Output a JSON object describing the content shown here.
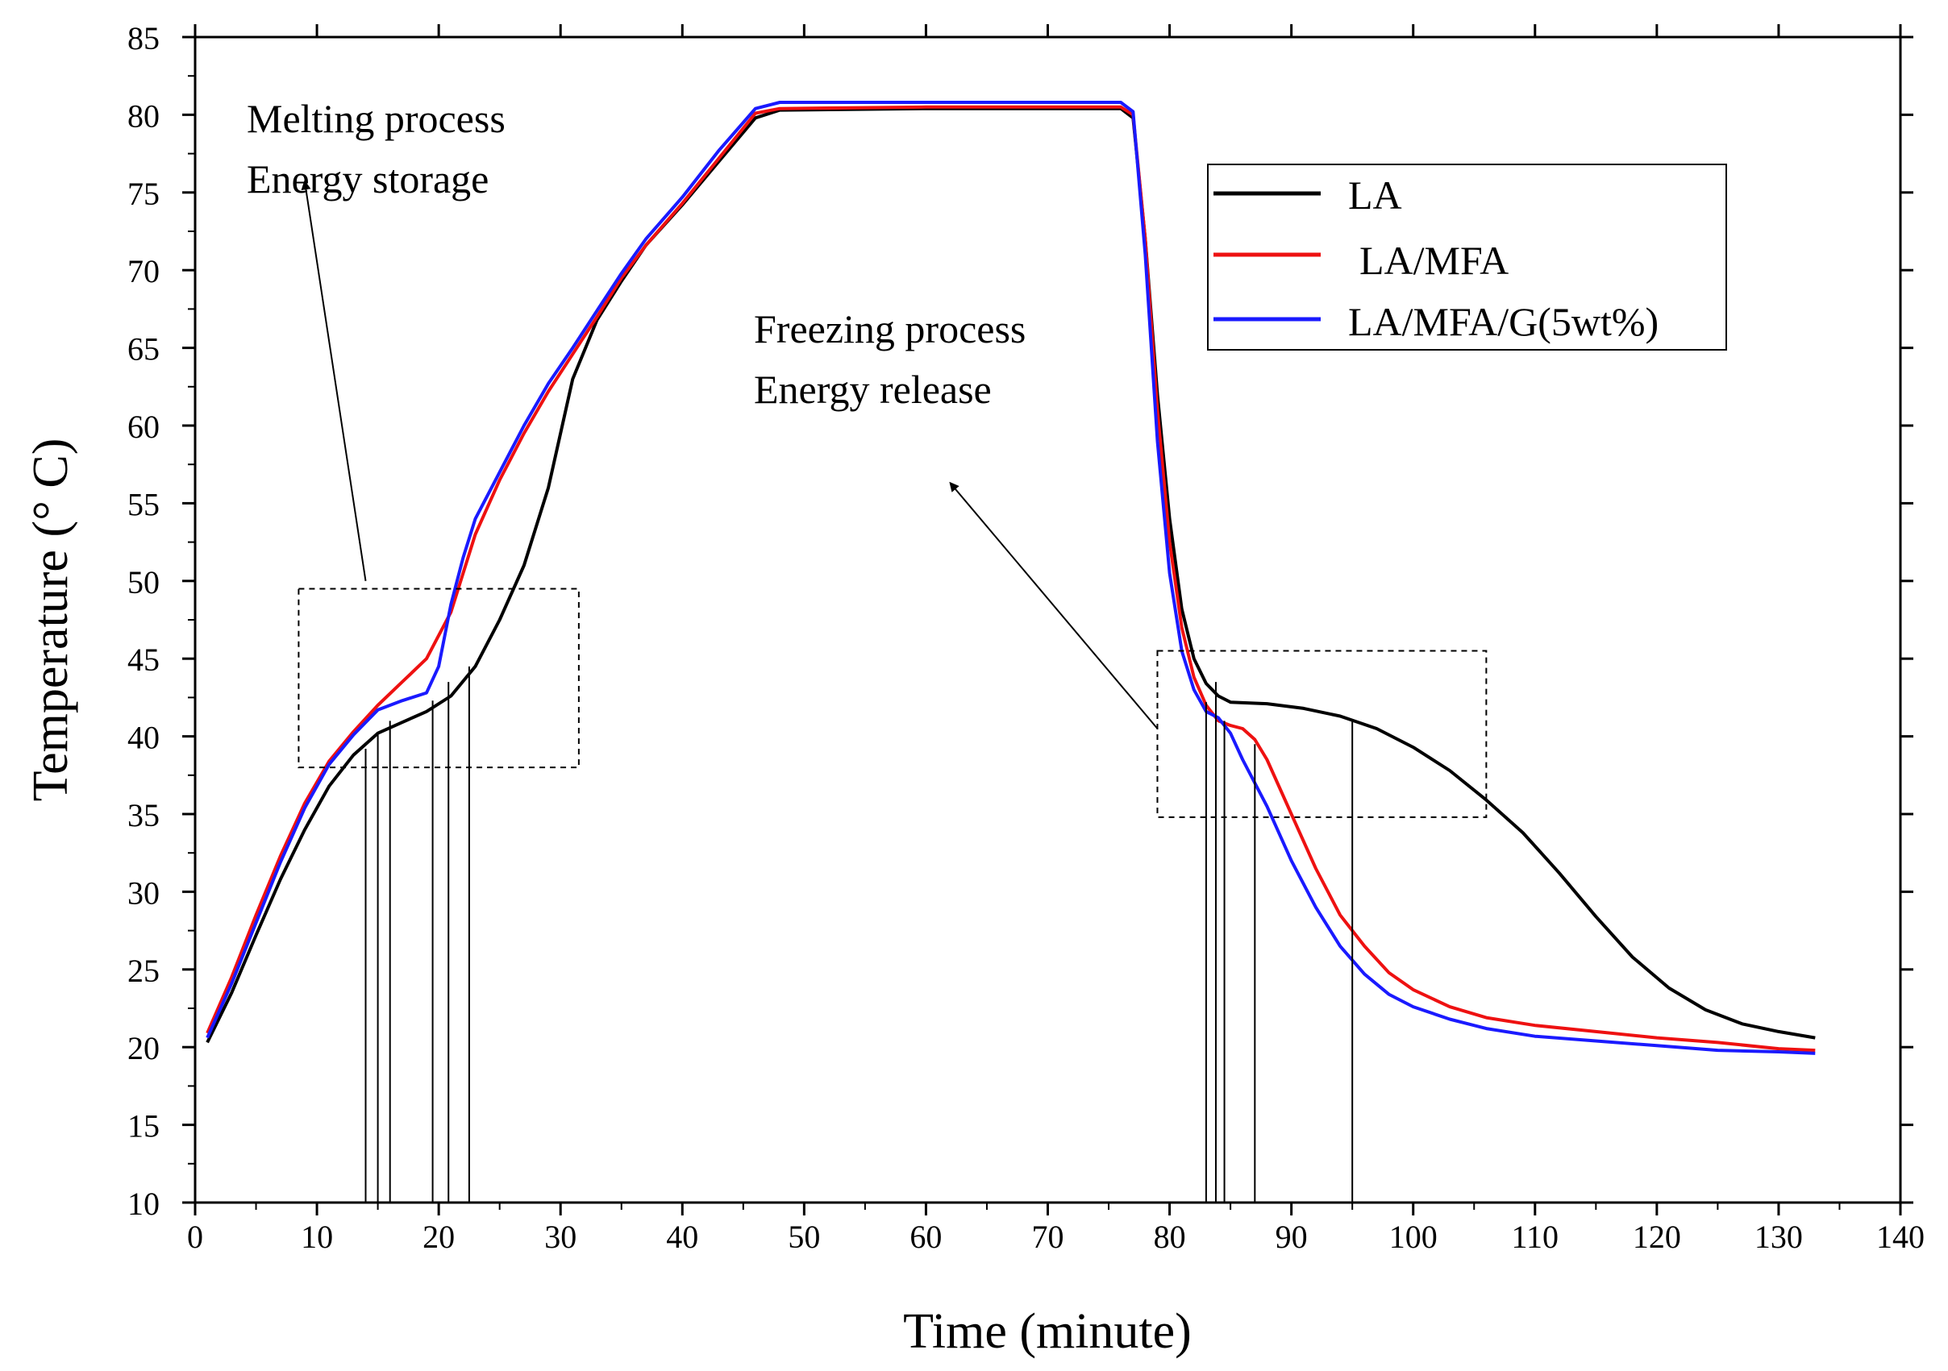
{
  "chart_data": {
    "type": "line",
    "xlabel": "Time (minute)",
    "ylabel": "Temperature (° C)",
    "xlim": [
      0,
      140
    ],
    "ylim": [
      10,
      85
    ],
    "xticks": [
      0,
      10,
      20,
      30,
      40,
      50,
      60,
      70,
      80,
      90,
      100,
      110,
      120,
      130,
      140
    ],
    "yticks": [
      10,
      15,
      20,
      25,
      30,
      35,
      40,
      45,
      50,
      55,
      60,
      65,
      70,
      75,
      80,
      85
    ],
    "grid": false,
    "legend_position": "top-right",
    "series": [
      {
        "name": "LA",
        "color": "#000000",
        "points": [
          [
            1,
            20.3
          ],
          [
            3,
            23.5
          ],
          [
            5,
            27.2
          ],
          [
            7,
            30.8
          ],
          [
            9,
            34
          ],
          [
            11,
            36.8
          ],
          [
            13,
            38.8
          ],
          [
            15,
            40.2
          ],
          [
            17,
            40.9
          ],
          [
            19,
            41.6
          ],
          [
            21,
            42.6
          ],
          [
            23,
            44.5
          ],
          [
            25,
            47.5
          ],
          [
            27,
            51
          ],
          [
            29,
            56
          ],
          [
            31,
            63
          ],
          [
            33,
            66.8
          ],
          [
            35,
            69.3
          ],
          [
            37,
            71.6
          ],
          [
            40,
            74.2
          ],
          [
            43,
            77
          ],
          [
            46,
            79.8
          ],
          [
            48,
            80.3
          ],
          [
            60,
            80.4
          ],
          [
            76,
            80.4
          ],
          [
            77,
            79.8
          ],
          [
            78,
            72
          ],
          [
            79,
            62
          ],
          [
            80,
            54
          ],
          [
            81,
            48.2
          ],
          [
            82,
            45
          ],
          [
            83,
            43.4
          ],
          [
            84,
            42.6
          ],
          [
            85,
            42.2
          ],
          [
            88,
            42.1
          ],
          [
            91,
            41.8
          ],
          [
            94,
            41.3
          ],
          [
            97,
            40.5
          ],
          [
            100,
            39.3
          ],
          [
            103,
            37.8
          ],
          [
            106,
            35.9
          ],
          [
            109,
            33.8
          ],
          [
            112,
            31.2
          ],
          [
            115,
            28.4
          ],
          [
            118,
            25.8
          ],
          [
            121,
            23.8
          ],
          [
            124,
            22.4
          ],
          [
            127,
            21.5
          ],
          [
            130,
            21
          ],
          [
            133,
            20.6
          ]
        ]
      },
      {
        "name": "LA/MFA",
        "color": "#ee1111",
        "points": [
          [
            1,
            20.9
          ],
          [
            3,
            24.5
          ],
          [
            5,
            28.5
          ],
          [
            7,
            32.3
          ],
          [
            9,
            35.7
          ],
          [
            11,
            38.4
          ],
          [
            13,
            40.3
          ],
          [
            15,
            42
          ],
          [
            17,
            43.5
          ],
          [
            19,
            45
          ],
          [
            21,
            48
          ],
          [
            23,
            53
          ],
          [
            25,
            56.5
          ],
          [
            27,
            59.5
          ],
          [
            29,
            62.2
          ],
          [
            31,
            64.6
          ],
          [
            33,
            67
          ],
          [
            35,
            69.5
          ],
          [
            37,
            71.6
          ],
          [
            40,
            74.3
          ],
          [
            43,
            77.2
          ],
          [
            46,
            80.1
          ],
          [
            48,
            80.4
          ],
          [
            60,
            80.5
          ],
          [
            76,
            80.5
          ],
          [
            77,
            80
          ],
          [
            78,
            72
          ],
          [
            79,
            61
          ],
          [
            80,
            52.5
          ],
          [
            81,
            47
          ],
          [
            82,
            43.8
          ],
          [
            83,
            42
          ],
          [
            84,
            41
          ],
          [
            85,
            40.7
          ],
          [
            86,
            40.5
          ],
          [
            87,
            39.8
          ],
          [
            88,
            38.5
          ],
          [
            90,
            35
          ],
          [
            92,
            31.5
          ],
          [
            94,
            28.5
          ],
          [
            96,
            26.5
          ],
          [
            98,
            24.8
          ],
          [
            100,
            23.7
          ],
          [
            103,
            22.6
          ],
          [
            106,
            21.9
          ],
          [
            110,
            21.4
          ],
          [
            115,
            21
          ],
          [
            120,
            20.6
          ],
          [
            125,
            20.3
          ],
          [
            130,
            19.9
          ],
          [
            133,
            19.8
          ]
        ]
      },
      {
        "name": "LA/MFA/G(5wt%)",
        "color": "#1a1aff",
        "points": [
          [
            1,
            20.6
          ],
          [
            3,
            24.1
          ],
          [
            5,
            28
          ],
          [
            7,
            31.9
          ],
          [
            9,
            35.4
          ],
          [
            11,
            38.2
          ],
          [
            13,
            40.1
          ],
          [
            15,
            41.7
          ],
          [
            17,
            42.3
          ],
          [
            19,
            42.8
          ],
          [
            20,
            44.5
          ],
          [
            21,
            48.5
          ],
          [
            22,
            51.5
          ],
          [
            23,
            54
          ],
          [
            25,
            57
          ],
          [
            27,
            60
          ],
          [
            29,
            62.7
          ],
          [
            31,
            65
          ],
          [
            33,
            67.4
          ],
          [
            35,
            69.8
          ],
          [
            37,
            72
          ],
          [
            40,
            74.7
          ],
          [
            43,
            77.7
          ],
          [
            46,
            80.4
          ],
          [
            48,
            80.8
          ],
          [
            60,
            80.8
          ],
          [
            76,
            80.8
          ],
          [
            77,
            80.2
          ],
          [
            78,
            71
          ],
          [
            79,
            59
          ],
          [
            80,
            50.5
          ],
          [
            81,
            45.5
          ],
          [
            82,
            43
          ],
          [
            83,
            41.6
          ],
          [
            84,
            41.2
          ],
          [
            85,
            40.2
          ],
          [
            86,
            38.5
          ],
          [
            88,
            35.5
          ],
          [
            90,
            32
          ],
          [
            92,
            29
          ],
          [
            94,
            26.5
          ],
          [
            96,
            24.7
          ],
          [
            98,
            23.4
          ],
          [
            100,
            22.6
          ],
          [
            103,
            21.8
          ],
          [
            106,
            21.2
          ],
          [
            110,
            20.7
          ],
          [
            115,
            20.4
          ],
          [
            120,
            20.1
          ],
          [
            125,
            19.8
          ],
          [
            130,
            19.7
          ],
          [
            133,
            19.6
          ]
        ]
      }
    ],
    "annotations": {
      "melting_line1": "Melting process",
      "melting_line2": "Energy storage",
      "freezing_line1": "Freezing process",
      "freezing_line2": "Energy release"
    },
    "melting_box": {
      "x": [
        8.5,
        31.5
      ],
      "y": [
        38,
        49.5
      ]
    },
    "freezing_box": {
      "x": [
        79,
        106
      ],
      "y": [
        34.8,
        45.5
      ]
    },
    "melting_drop_lines": [
      [
        14,
        39.2
      ],
      [
        15,
        40.2
      ],
      [
        16,
        41
      ],
      [
        19.5,
        42.3
      ],
      [
        20.8,
        43.5
      ],
      [
        22.5,
        44.5
      ]
    ],
    "freezing_drop_lines": [
      [
        83,
        42.2
      ],
      [
        83.8,
        43.5
      ],
      [
        84.5,
        41
      ],
      [
        87,
        39.5
      ],
      [
        95,
        41
      ]
    ],
    "melting_arrow": {
      "from": [
        14,
        50
      ],
      "to": [
        9,
        75.7
      ]
    },
    "freezing_arrow": {
      "from": [
        79,
        40.5
      ],
      "to": [
        62,
        56.3
      ]
    }
  }
}
